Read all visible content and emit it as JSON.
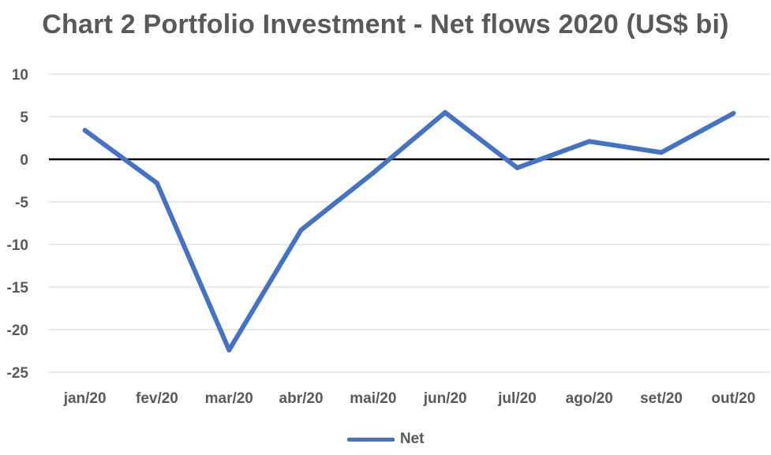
{
  "chart_data": {
    "type": "line",
    "title": "Chart 2 Portfolio Investment - Net flows 2020 (US$ bi)",
    "categories": [
      "jan/20",
      "fev/20",
      "mar/20",
      "abr/20",
      "mai/20",
      "jun/20",
      "jul/20",
      "ago/20",
      "set/20",
      "out/20"
    ],
    "series": [
      {
        "name": "Net",
        "values": [
          3.4,
          -2.8,
          -22.4,
          -8.3,
          -1.6,
          5.5,
          -1.0,
          2.1,
          0.8,
          5.4
        ],
        "color": "#4472C4"
      }
    ],
    "yticks": [
      10,
      5,
      0,
      -5,
      -10,
      -15,
      -20,
      -25
    ],
    "ylim": [
      -25,
      10
    ],
    "grid": true,
    "legend_position": "bottom"
  }
}
